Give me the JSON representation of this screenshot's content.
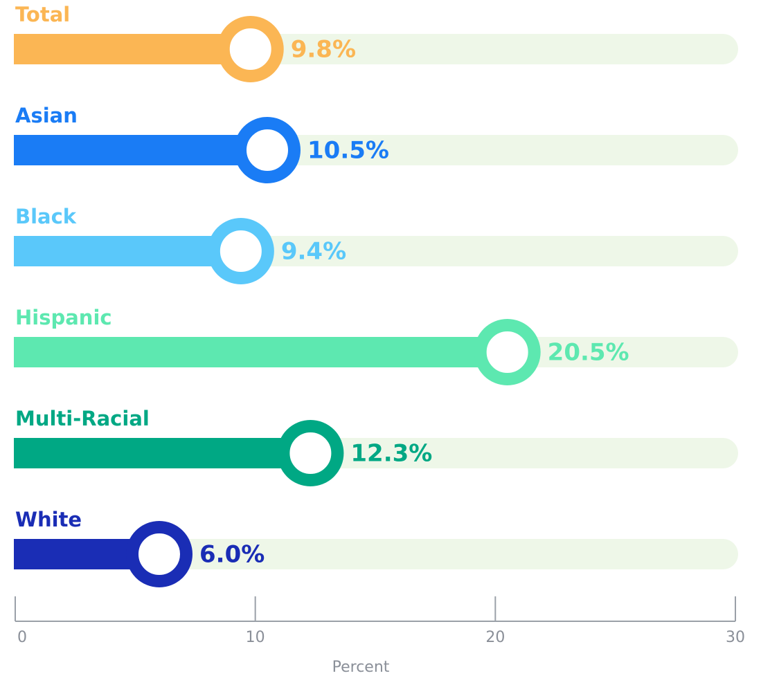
{
  "chart_data": {
    "type": "lollipop",
    "categories": [
      "Total",
      "Asian",
      "Black",
      "Hispanic",
      "Multi-Racial",
      "White"
    ],
    "values": [
      9.8,
      10.5,
      9.4,
      20.5,
      12.3,
      6.0
    ],
    "value_labels": [
      "9.8%",
      "10.5%",
      "9.4%",
      "20.5%",
      "12.3%",
      "6.0%"
    ],
    "colors": [
      "#fbb654",
      "#1a7cf5",
      "#5ac8fa",
      "#5de8b0",
      "#00a884",
      "#1a2db5"
    ],
    "xlim": [
      0,
      30
    ],
    "xticks": [
      0,
      10,
      20,
      30
    ],
    "xlabel": "Percent"
  }
}
